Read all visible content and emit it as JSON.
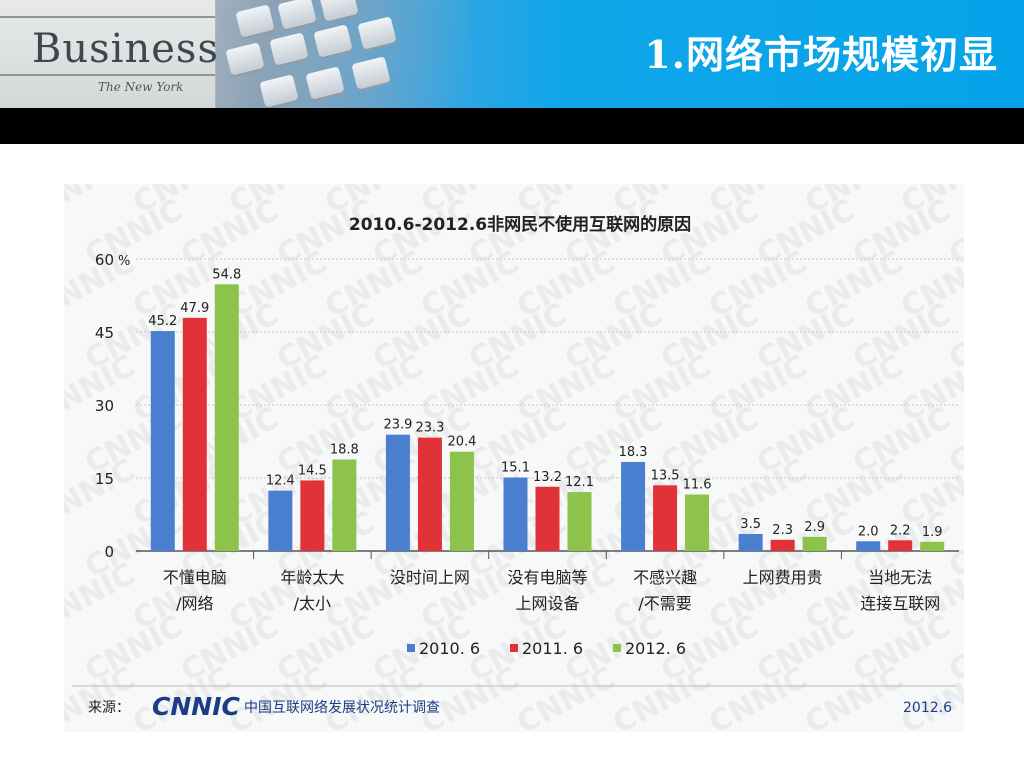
{
  "header": {
    "title": "1.网络市场规模初显",
    "photo_text": "Business",
    "photo_subtext": "The New York"
  },
  "colors": {
    "header_blue": "#06a3ea",
    "band": "#000000",
    "series_2010": "#4a7fd0",
    "series_2011": "#e03238",
    "series_2012": "#8dc24b"
  },
  "icons": {
    "keyboard": "keyboard-photo",
    "watermark": "cnnic-watermark"
  },
  "chart_data": {
    "type": "bar",
    "title": "2010.6-2012.6非网民不使用互联网的原因",
    "ylabel": "",
    "y_unit": "%",
    "ylim": [
      0,
      60
    ],
    "yticks": [
      "0",
      "15",
      "30",
      "45",
      "60"
    ],
    "grid": true,
    "legend_position": "bottom",
    "categories": [
      [
        "不懂电脑",
        "/网络"
      ],
      [
        "年龄太大",
        "/太小"
      ],
      [
        "没时间上网"
      ],
      [
        "没有电脑等",
        "上网设备"
      ],
      [
        "不感兴趣",
        "/不需要"
      ],
      [
        "上网费用贵"
      ],
      [
        "当地无法",
        "连接互联网"
      ]
    ],
    "series": [
      {
        "name": "2010. 6",
        "values": [
          45.2,
          12.4,
          23.9,
          15.1,
          18.3,
          3.5,
          2.0
        ]
      },
      {
        "name": "2011. 6",
        "values": [
          47.9,
          14.5,
          23.3,
          13.2,
          13.5,
          2.3,
          2.2
        ]
      },
      {
        "name": "2012. 6",
        "values": [
          54.8,
          18.8,
          20.4,
          12.1,
          11.6,
          2.9,
          1.9
        ]
      }
    ],
    "source_label": "来源：",
    "source_logo": "CNNIC",
    "source_text": "中国互联网络发展状况统计调查",
    "source_date": "2012.6"
  }
}
